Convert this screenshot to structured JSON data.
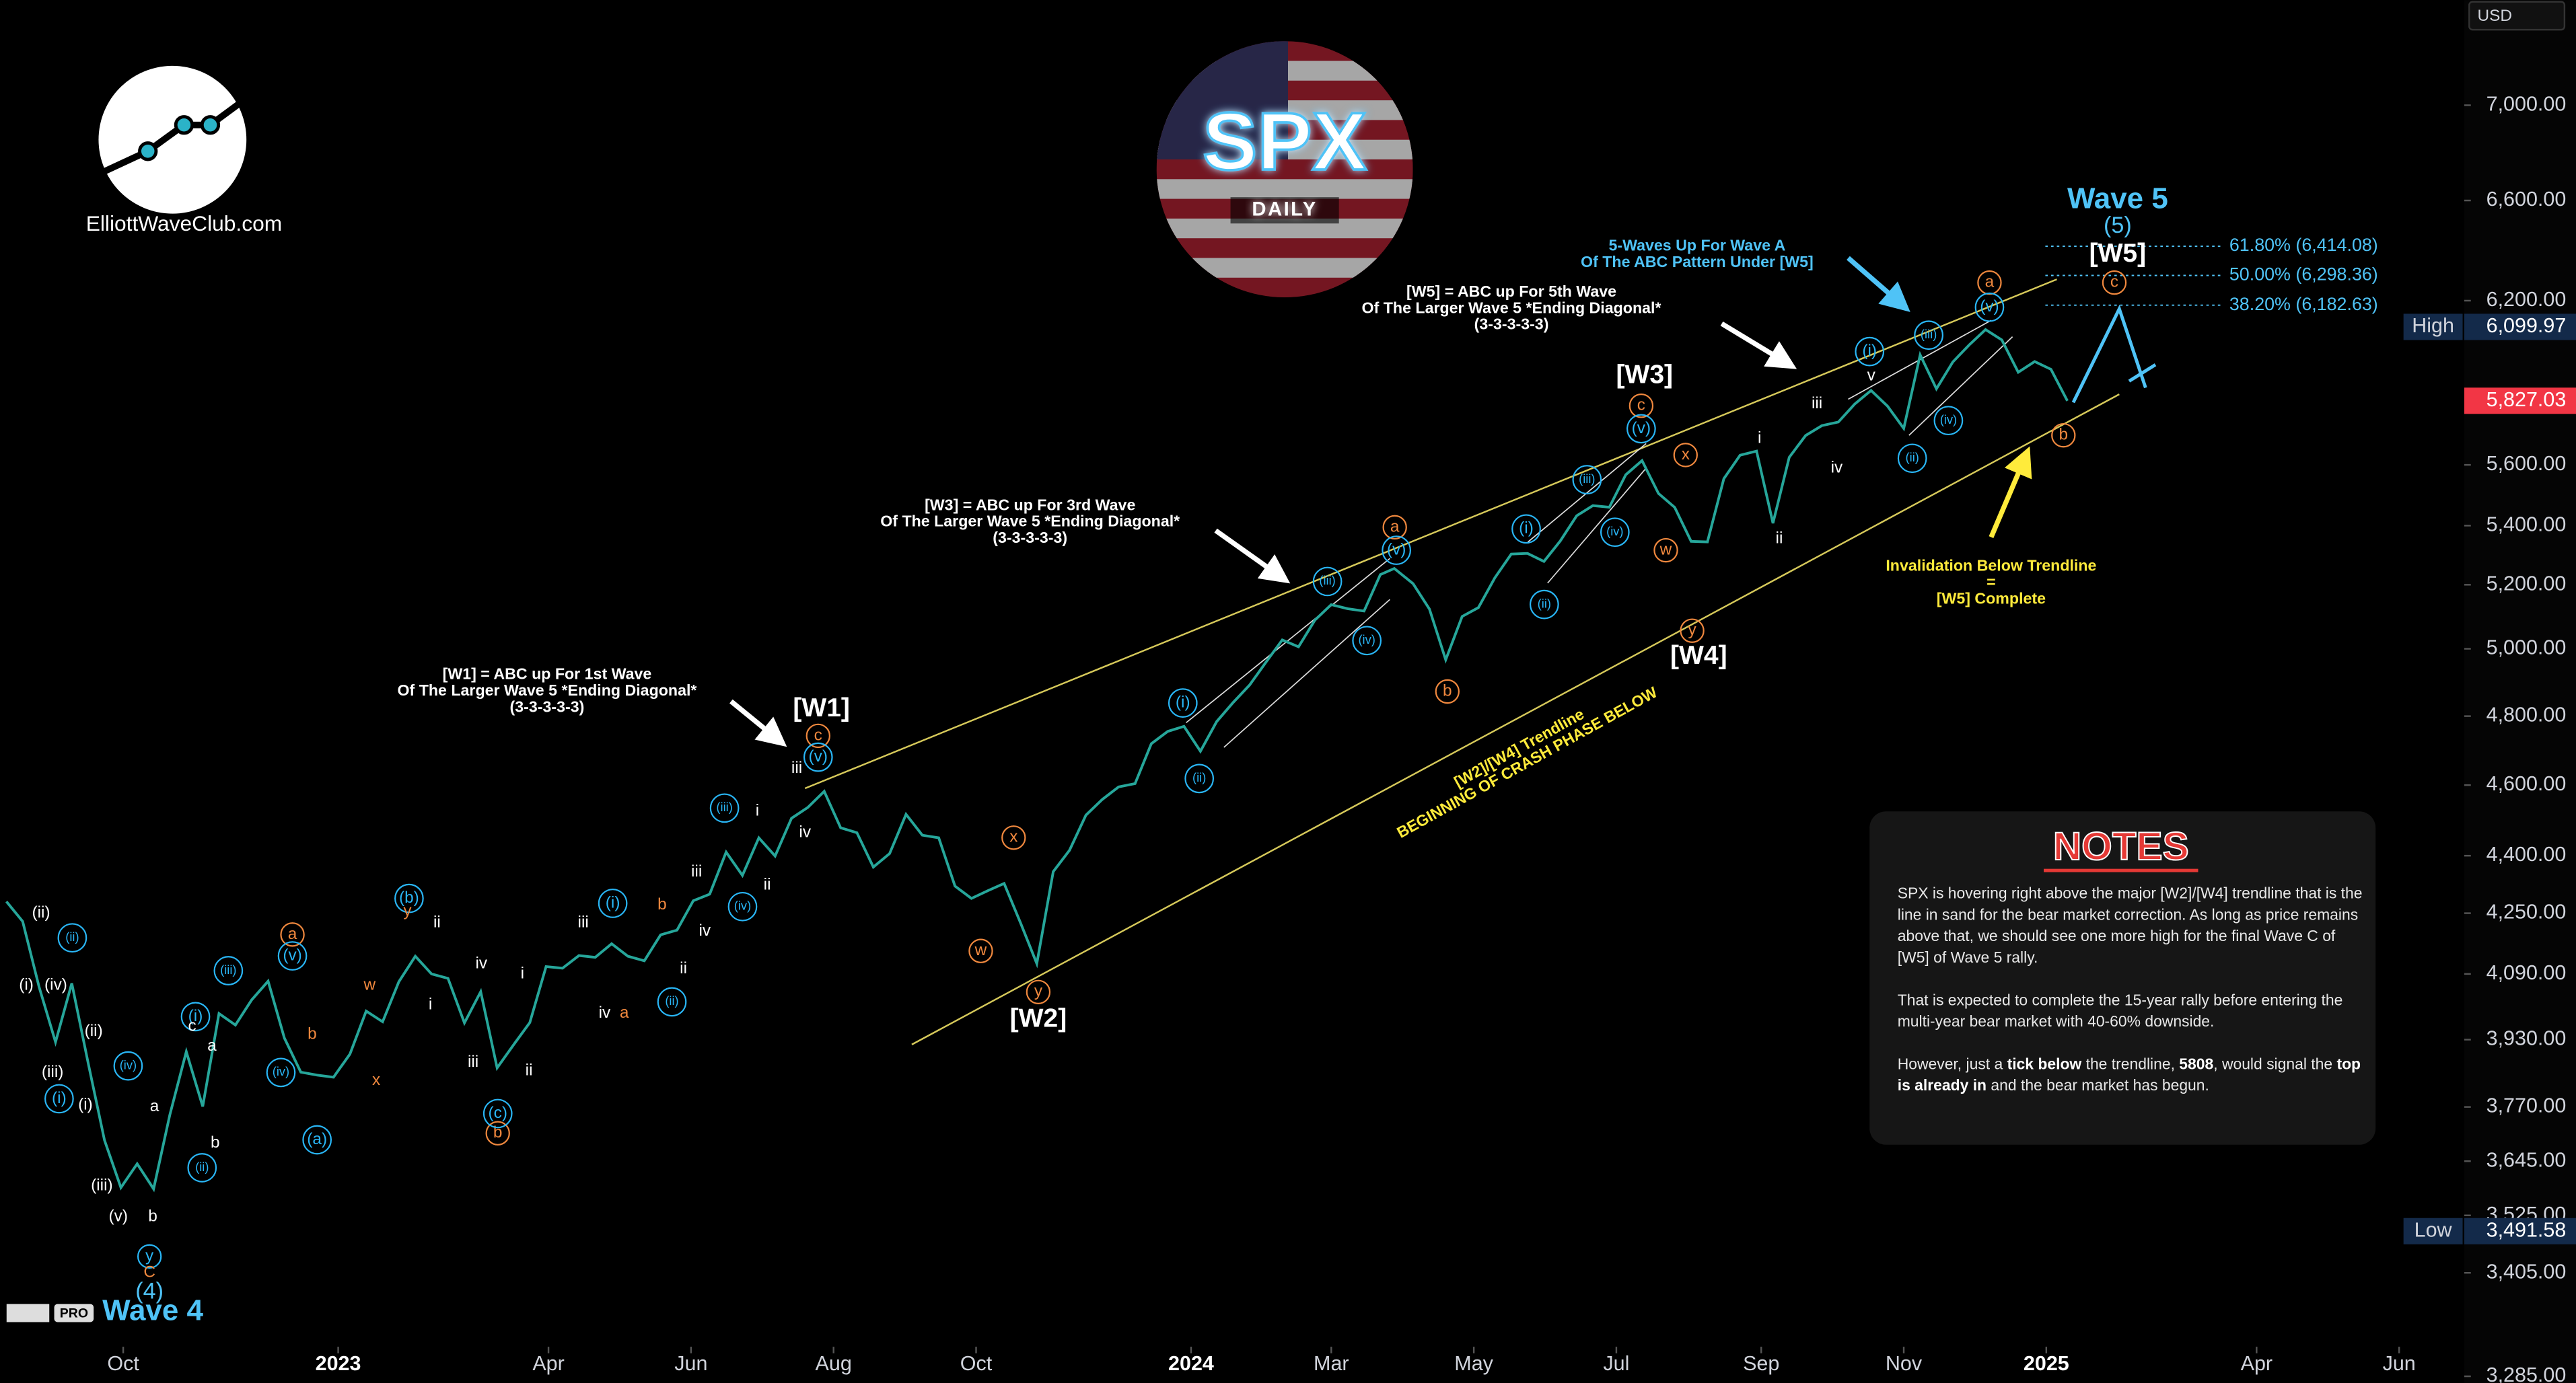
{
  "header": {
    "logo_text": "ElliottWaveClub.com",
    "badge_title": "SPX",
    "badge_subtitle": "DAILY",
    "platform_badge": "PRO"
  },
  "chart_data": {
    "type": "line",
    "log_scale": true,
    "currency": "USD",
    "color": "#26a69a",
    "x": [
      "2022-08-12",
      "2022-08-19",
      "2022-08-26",
      "2022-09-02",
      "2022-09-09",
      "2022-09-16",
      "2022-09-23",
      "2022-09-30",
      "2022-10-07",
      "2022-10-14",
      "2022-10-21",
      "2022-10-28",
      "2022-11-04",
      "2022-11-11",
      "2022-11-18",
      "2022-11-25",
      "2022-12-02",
      "2022-12-09",
      "2022-12-16",
      "2022-12-23",
      "2022-12-30",
      "2023-01-06",
      "2023-01-13",
      "2023-01-20",
      "2023-01-27",
      "2023-02-03",
      "2023-02-10",
      "2023-02-17",
      "2023-02-24",
      "2023-03-03",
      "2023-03-10",
      "2023-03-17",
      "2023-03-24",
      "2023-03-31",
      "2023-04-07",
      "2023-04-14",
      "2023-04-21",
      "2023-04-28",
      "2023-05-05",
      "2023-05-12",
      "2023-05-19",
      "2023-05-26",
      "2023-06-02",
      "2023-06-09",
      "2023-06-16",
      "2023-06-23",
      "2023-06-30",
      "2023-07-07",
      "2023-07-14",
      "2023-07-21",
      "2023-07-28",
      "2023-08-04",
      "2023-08-11",
      "2023-08-18",
      "2023-08-25",
      "2023-09-01",
      "2023-09-08",
      "2023-09-15",
      "2023-09-22",
      "2023-09-29",
      "2023-10-06",
      "2023-10-13",
      "2023-10-20",
      "2023-10-27",
      "2023-11-03",
      "2023-11-10",
      "2023-11-17",
      "2023-11-24",
      "2023-12-01",
      "2023-12-08",
      "2023-12-15",
      "2023-12-22",
      "2023-12-29",
      "2024-01-05",
      "2024-01-12",
      "2024-01-19",
      "2024-01-26",
      "2024-02-02",
      "2024-02-09",
      "2024-02-16",
      "2024-02-23",
      "2024-03-01",
      "2024-03-08",
      "2024-03-15",
      "2024-03-22",
      "2024-03-28",
      "2024-04-05",
      "2024-04-12",
      "2024-04-19",
      "2024-04-26",
      "2024-05-03",
      "2024-05-10",
      "2024-05-17",
      "2024-05-24",
      "2024-05-31",
      "2024-06-07",
      "2024-06-14",
      "2024-06-21",
      "2024-06-28",
      "2024-07-05",
      "2024-07-12",
      "2024-07-19",
      "2024-07-26",
      "2024-08-02",
      "2024-08-09",
      "2024-08-16",
      "2024-08-23",
      "2024-08-30",
      "2024-09-06",
      "2024-09-13",
      "2024-09-20",
      "2024-09-27",
      "2024-10-04",
      "2024-10-11",
      "2024-10-18",
      "2024-10-25",
      "2024-11-01",
      "2024-11-08",
      "2024-11-15",
      "2024-11-22",
      "2024-11-29",
      "2024-12-06",
      "2024-12-13",
      "2024-12-20",
      "2024-12-27",
      "2025-01-03",
      "2025-01-10"
    ],
    "values": [
      4280,
      4228,
      4058,
      3924,
      4067,
      3873,
      3693,
      3586,
      3639,
      3583,
      3752,
      3901,
      3771,
      3993,
      3965,
      4026,
      4072,
      3934,
      3852,
      3845,
      3840,
      3895,
      3999,
      3973,
      4071,
      4136,
      4090,
      4079,
      3970,
      4046,
      3862,
      3917,
      3971,
      4109,
      4105,
      4138,
      4133,
      4169,
      4136,
      4124,
      4192,
      4205,
      4282,
      4299,
      4410,
      4348,
      4450,
      4399,
      4505,
      4536,
      4582,
      4478,
      4464,
      4370,
      4406,
      4516,
      4457,
      4450,
      4320,
      4288,
      4308,
      4327,
      4224,
      4117,
      4358,
      4415,
      4514,
      4559,
      4595,
      4604,
      4719,
      4755,
      4770,
      4697,
      4784,
      4840,
      4891,
      4959,
      5027,
      5006,
      5089,
      5137,
      5124,
      5117,
      5234,
      5254,
      5204,
      5123,
      4967,
      5100,
      5128,
      5223,
      5303,
      5305,
      5278,
      5347,
      5432,
      5465,
      5460,
      5567,
      5615,
      5505,
      5459,
      5346,
      5344,
      5554,
      5634,
      5648,
      5408,
      5626,
      5703,
      5738,
      5751,
      5815,
      5864,
      5808,
      5728,
      5995,
      5870,
      5969,
      6032,
      6090,
      6051,
      5931,
      5970,
      5942,
      5827
    ],
    "ylim": [
      3280,
      7470
    ],
    "yticks": [
      {
        "value": 3285,
        "label": "3,285.00"
      },
      {
        "value": 3405,
        "label": "3,405.00"
      },
      {
        "value": 3525,
        "label": "3,525.00"
      },
      {
        "value": 3645,
        "label": "3,645.00"
      },
      {
        "value": 3770,
        "label": "3,770.00"
      },
      {
        "value": 3930,
        "label": "3,930.00"
      },
      {
        "value": 4090,
        "label": "4,090.00"
      },
      {
        "value": 4250,
        "label": "4,250.00"
      },
      {
        "value": 4400,
        "label": "4,400.00"
      },
      {
        "value": 4600,
        "label": "4,600.00"
      },
      {
        "value": 4800,
        "label": "4,800.00"
      },
      {
        "value": 5000,
        "label": "5,000.00"
      },
      {
        "value": 5200,
        "label": "5,200.00"
      },
      {
        "value": 5400,
        "label": "5,400.00"
      },
      {
        "value": 5600,
        "label": "5,600.00"
      },
      {
        "value": 6200,
        "label": "6,200.00"
      },
      {
        "value": 6600,
        "label": "6,600.00"
      },
      {
        "value": 7000,
        "label": "7,000.00"
      }
    ],
    "xticks": [
      {
        "value": "2022-10-01",
        "label": "Oct"
      },
      {
        "value": "2023-01-01",
        "label": "2023"
      },
      {
        "value": "2023-04-01",
        "label": "Apr"
      },
      {
        "value": "2023-06-01",
        "label": "Jun"
      },
      {
        "value": "2023-08-01",
        "label": "Aug"
      },
      {
        "value": "2023-10-01",
        "label": "Oct"
      },
      {
        "value": "2024-01-01",
        "label": "2024"
      },
      {
        "value": "2024-03-01",
        "label": "Mar"
      },
      {
        "value": "2024-05-01",
        "label": "May"
      },
      {
        "value": "2024-07-01",
        "label": "Jul"
      },
      {
        "value": "2024-09-01",
        "label": "Sep"
      },
      {
        "value": "2024-11-01",
        "label": "Nov"
      },
      {
        "value": "2025-01-01",
        "label": "2025"
      },
      {
        "value": "2025-04-01",
        "label": "Apr"
      },
      {
        "value": "2025-06-01",
        "label": "Jun"
      }
    ],
    "price_markers": [
      {
        "label": "High",
        "value": 6099.97,
        "value_label": "6,099.97",
        "color": "#132a4a"
      },
      {
        "value": 5827.03,
        "value_label": "5,827.03",
        "color": "#f23645"
      },
      {
        "label": "Low",
        "value": 3491.58,
        "value_label": "3,491.58",
        "color": "#132a4a"
      }
    ],
    "fib_levels": [
      {
        "value": 6414.08,
        "label": "61.80% (6,414.08)"
      },
      {
        "value": 6298.36,
        "label": "50.00% (6,298.36)"
      },
      {
        "value": 6182.63,
        "label": "38.20% (6,182.63)"
      }
    ],
    "annotations": [
      {
        "color": "#ffffff",
        "lines": [
          "[W1] = ABC up For 1st Wave",
          "Of The Larger Wave 5 *Ending Diagonal*",
          "(3-3-3-3-3)"
        ]
      },
      {
        "color": "#ffffff",
        "lines": [
          "[W3] = ABC up For 3rd Wave",
          "Of The Larger Wave 5 *Ending Diagonal*",
          "(3-3-3-3-3)"
        ]
      },
      {
        "color": "#ffffff",
        "lines": [
          "[W5] = ABC up For 5th Wave",
          "Of The Larger Wave 5 *Ending Diagonal*",
          "(3-3-3-3-3)"
        ]
      },
      {
        "color": "#4fc3f7",
        "lines": [
          "5-Waves Up For Wave A",
          "Of The ABC Pattern Under [W5]"
        ]
      },
      {
        "color": "#ffeb3b",
        "lines": [
          "Invalidation Below Trendline",
          "=",
          "[W5] Complete"
        ]
      },
      {
        "color": "#ffeb3b",
        "lines": [
          "[W2]/[W4] Trendline",
          "BEGINNING OF CRASH PHASE BELOW"
        ]
      }
    ],
    "wave_labels": [
      {
        "text": "[W1]",
        "style": "br"
      },
      {
        "text": "[W2]",
        "style": "br"
      },
      {
        "text": "[W3]",
        "style": "br"
      },
      {
        "text": "[W4]",
        "style": "br"
      },
      {
        "text": "[W5]",
        "style": "br"
      },
      {
        "text": "(5)",
        "style": "deg"
      },
      {
        "text": "Wave 5",
        "style": "wave"
      },
      {
        "text": "(4)",
        "style": "deg"
      },
      {
        "text": "Wave 4",
        "style": "wave"
      },
      {
        "text": "c",
        "style": "oc"
      },
      {
        "text": "(v)",
        "style": "bc"
      },
      {
        "text": "x",
        "style": "oc"
      },
      {
        "text": "w",
        "style": "oc"
      },
      {
        "text": "y",
        "style": "oc"
      },
      {
        "text": "a",
        "style": "oc"
      },
      {
        "text": "(v)",
        "style": "bc"
      },
      {
        "text": "b",
        "style": "oc"
      },
      {
        "text": "c",
        "style": "oc"
      },
      {
        "text": "(v)",
        "style": "bc"
      },
      {
        "text": "x",
        "style": "oc"
      },
      {
        "text": "w",
        "style": "oc"
      },
      {
        "text": "y",
        "style": "oc"
      },
      {
        "text": "a",
        "style": "oc"
      },
      {
        "text": "(v)",
        "style": "bc"
      },
      {
        "text": "c",
        "style": "oc"
      },
      {
        "text": "b",
        "style": "oc"
      },
      {
        "text": "(i)",
        "style": "bc"
      },
      {
        "text": "(ii)",
        "style": "bc"
      },
      {
        "text": "(iii)",
        "style": "bc"
      },
      {
        "text": "(iv)",
        "style": "bc"
      },
      {
        "text": "(i)",
        "style": "bc"
      },
      {
        "text": "(ii)",
        "style": "bc"
      },
      {
        "text": "(iii)",
        "style": "bc"
      },
      {
        "text": "(iv)",
        "style": "bc"
      },
      {
        "text": "(i)",
        "style": "bc"
      },
      {
        "text": "(ii)",
        "style": "bc"
      },
      {
        "text": "(iii)",
        "style": "bc"
      },
      {
        "text": "(iv)",
        "style": "bc"
      },
      {
        "text": "iii",
        "style": "w"
      },
      {
        "text": "iv",
        "style": "w"
      },
      {
        "text": "i",
        "style": "w"
      },
      {
        "text": "ii",
        "style": "w"
      },
      {
        "text": "v",
        "style": "w"
      },
      {
        "text": "iii",
        "style": "w"
      },
      {
        "text": "i",
        "style": "w"
      },
      {
        "text": "iv",
        "style": "w"
      },
      {
        "text": "ii",
        "style": "w"
      },
      {
        "text": "iii",
        "style": "w"
      },
      {
        "text": "iv",
        "style": "w"
      },
      {
        "text": "(iv)",
        "style": "bc"
      },
      {
        "text": "(iii)",
        "style": "bc"
      },
      {
        "text": "(ii)",
        "style": "bc"
      },
      {
        "text": "iii",
        "style": "w"
      },
      {
        "text": "iv",
        "style": "w"
      },
      {
        "text": "a",
        "style": "o"
      },
      {
        "text": "b",
        "style": "o"
      },
      {
        "text": "(i)",
        "style": "bc"
      },
      {
        "text": "ii",
        "style": "w"
      },
      {
        "text": "i",
        "style": "w"
      },
      {
        "text": "ii",
        "style": "w"
      },
      {
        "text": "iii",
        "style": "w"
      },
      {
        "text": "iv",
        "style": "w"
      },
      {
        "text": "b",
        "style": "oc"
      },
      {
        "text": "(c)",
        "style": "bc"
      },
      {
        "text": "(b)",
        "style": "bc"
      },
      {
        "text": "y",
        "style": "o"
      },
      {
        "text": "ii",
        "style": "w"
      },
      {
        "text": "i",
        "style": "w"
      },
      {
        "text": "w",
        "style": "o"
      },
      {
        "text": "x",
        "style": "o"
      },
      {
        "text": "a",
        "style": "oc"
      },
      {
        "text": "(v)",
        "style": "bc"
      },
      {
        "text": "(iv)",
        "style": "bc"
      },
      {
        "text": "(a)",
        "style": "bc"
      },
      {
        "text": "b",
        "style": "o"
      },
      {
        "text": "(iii)",
        "style": "bc"
      },
      {
        "text": "(i)",
        "style": "bc"
      },
      {
        "text": "(ii)",
        "style": "bc"
      },
      {
        "text": "c",
        "style": "w"
      },
      {
        "text": "a",
        "style": "w"
      },
      {
        "text": "b",
        "style": "w"
      },
      {
        "text": "(iv)",
        "style": "bc"
      },
      {
        "text": "a",
        "style": "w"
      },
      {
        "text": "b",
        "style": "w"
      },
      {
        "text": "y",
        "style": "bc"
      },
      {
        "text": "C",
        "style": "o"
      },
      {
        "text": "(iii)",
        "style": "w"
      },
      {
        "text": "(v)",
        "style": "w"
      },
      {
        "text": "(i)",
        "style": "w"
      },
      {
        "text": "(ii)",
        "style": "w"
      },
      {
        "text": "(ii)",
        "style": "bc"
      },
      {
        "text": "(i)",
        "style": "bc"
      },
      {
        "text": "(iv)",
        "style": "w"
      },
      {
        "text": "(iii)",
        "style": "w"
      },
      {
        "text": "(ii)",
        "style": "w"
      },
      {
        "text": "(i)",
        "style": "w"
      }
    ]
  },
  "notes": {
    "title": "NOTES",
    "paragraphs": [
      [
        "SPX is hovering right above the major [W2]/[W4] trendline that is the line in sand for the bear market correction. As long as price remains above that, we should see one more high for the final Wave C of [W5] of Wave 5 rally."
      ],
      [
        "That is expected to complete the 15-year rally before entering the multi-year bear market with 40-60% downside."
      ],
      [
        "However, just a ",
        "tick below",
        " the trendline, ",
        "5808",
        ", would signal the ",
        "top is already in",
        " and the bear market has begun."
      ]
    ]
  }
}
